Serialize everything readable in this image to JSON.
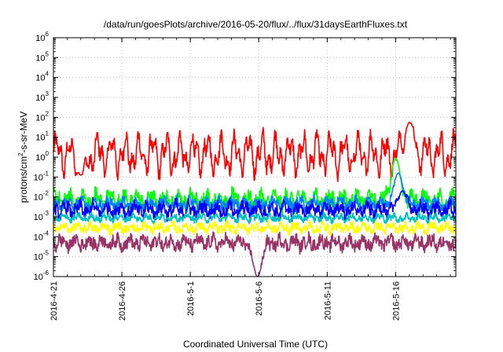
{
  "chart_data": {
    "type": "line",
    "title": "/data/run/goesPlots/archive/2016-05-20/flux/../flux/31daysEarthFluxes.txt",
    "xlabel": "Coordinated Universal Time (UTC)",
    "ylabel_main": "protons/cm",
    "ylabel_sup": "2",
    "ylabel_tail": "-s-sr-MeV",
    "yscale": "log",
    "ylim_exp": [
      -6,
      6
    ],
    "y_tick_exponents": [
      -6,
      -5,
      -4,
      -3,
      -2,
      -1,
      0,
      1,
      2,
      3,
      4,
      5,
      6
    ],
    "xlim_days": [
      0,
      29.4
    ],
    "x_tick_labels": [
      "2016-4-21",
      "2016-4-26",
      "2016-5-1",
      "2016-5-6",
      "2016-5-11",
      "2016-5-16"
    ],
    "grid": true,
    "series": [
      {
        "color": "#ff0000",
        "baseline_exp": 0.15,
        "amplitude": 1.3,
        "noise": 0.35,
        "events": [
          {
            "day": 26.0,
            "peak_exp": 1.75
          },
          {
            "day": 2.0,
            "peak_exp": -0.9
          }
        ]
      },
      {
        "color": "#00ff00",
        "baseline_exp": -2.15,
        "amplitude": 0.5,
        "noise": 0.35,
        "events": [
          {
            "day": 25.0,
            "peak_exp": -0.05
          }
        ]
      },
      {
        "color": "#0080ff",
        "baseline_exp": -2.35,
        "amplitude": 0.3,
        "noise": 0.25,
        "events": [
          {
            "day": 25.2,
            "peak_exp": -0.8
          }
        ]
      },
      {
        "color": "#0000ff",
        "baseline_exp": -2.65,
        "amplitude": 0.4,
        "noise": 0.3,
        "events": [
          {
            "day": 25.5,
            "peak_exp": -1.7
          }
        ]
      },
      {
        "color": "#00bfbf",
        "baseline_exp": -3.05,
        "amplitude": 0.2,
        "noise": 0.15,
        "events": []
      },
      {
        "color": "#ffff00",
        "baseline_exp": -3.55,
        "amplitude": 0.25,
        "noise": 0.2,
        "events": []
      },
      {
        "color": "#993366",
        "baseline_exp": -4.3,
        "amplitude": 0.35,
        "noise": 0.3,
        "events": [
          {
            "day": 14.9,
            "peak_exp": -6.0
          }
        ]
      }
    ]
  }
}
